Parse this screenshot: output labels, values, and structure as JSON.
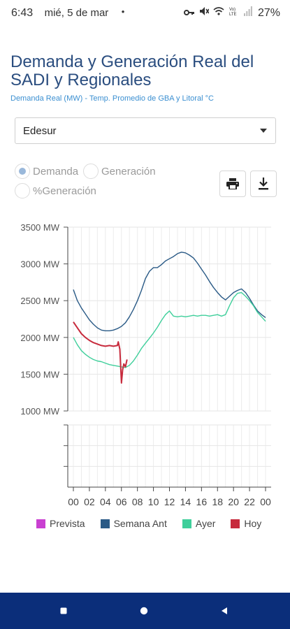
{
  "status_bar": {
    "time": "6:43",
    "date": "mié, 5 de mar",
    "dot": "•",
    "battery": "27%",
    "icons": [
      "key-icon",
      "mute-icon",
      "wifi-calling-icon",
      "volte-icon",
      "signal-icon"
    ]
  },
  "header": {
    "title": "Demanda y Generación Real del SADI y Regionales",
    "subtitle": "Demanda Real (MW) - Temp. Promedio de GBA y Litoral °C"
  },
  "region_select": {
    "value": "Edesur"
  },
  "mode": {
    "options": [
      {
        "label": "Demanda",
        "selected": true
      },
      {
        "label": "Generación",
        "selected": false
      },
      {
        "label": "%Generación",
        "selected": false
      }
    ]
  },
  "toolbar": {
    "print_icon": "print-icon",
    "download_icon": "download-icon"
  },
  "chart_data": {
    "type": "line",
    "y_axis": {
      "ticks": [
        "3500 MW",
        "3000 MW",
        "2500 MW",
        "2000 MW",
        "1500 MW",
        "1000 MW"
      ],
      "ylim": [
        1000,
        3500
      ]
    },
    "x_axis": {
      "ticks": [
        "00",
        "02",
        "04",
        "06",
        "08",
        "10",
        "12",
        "14",
        "16",
        "18",
        "20",
        "22",
        "00"
      ],
      "xlim": [
        0,
        24
      ]
    },
    "grid": true,
    "legend_position": "bottom",
    "series": [
      {
        "name": "Prevista",
        "color": "#c940d1",
        "points": []
      },
      {
        "name": "Semana Ant",
        "color": "#2a5a86",
        "points": [
          [
            0,
            2650
          ],
          [
            0.5,
            2500
          ],
          [
            1,
            2400
          ],
          [
            1.5,
            2320
          ],
          [
            2,
            2240
          ],
          [
            2.5,
            2180
          ],
          [
            3,
            2130
          ],
          [
            3.5,
            2100
          ],
          [
            4,
            2090
          ],
          [
            4.5,
            2090
          ],
          [
            5,
            2100
          ],
          [
            5.5,
            2120
          ],
          [
            6,
            2150
          ],
          [
            6.5,
            2200
          ],
          [
            7,
            2280
          ],
          [
            7.5,
            2380
          ],
          [
            8,
            2500
          ],
          [
            8.5,
            2640
          ],
          [
            9,
            2800
          ],
          [
            9.5,
            2900
          ],
          [
            10,
            2950
          ],
          [
            10.5,
            2950
          ],
          [
            11,
            2990
          ],
          [
            11.5,
            3040
          ],
          [
            12,
            3070
          ],
          [
            12.5,
            3100
          ],
          [
            13,
            3140
          ],
          [
            13.5,
            3160
          ],
          [
            14,
            3150
          ],
          [
            14.5,
            3120
          ],
          [
            15,
            3080
          ],
          [
            15.5,
            3010
          ],
          [
            16,
            2930
          ],
          [
            16.5,
            2850
          ],
          [
            17,
            2760
          ],
          [
            17.5,
            2680
          ],
          [
            18,
            2610
          ],
          [
            18.5,
            2550
          ],
          [
            19,
            2510
          ],
          [
            19.5,
            2560
          ],
          [
            20,
            2610
          ],
          [
            20.5,
            2640
          ],
          [
            21,
            2660
          ],
          [
            21.5,
            2610
          ],
          [
            22,
            2530
          ],
          [
            22.5,
            2440
          ],
          [
            23,
            2360
          ],
          [
            23.5,
            2310
          ],
          [
            24,
            2270
          ]
        ]
      },
      {
        "name": "Ayer",
        "color": "#3fcf9b",
        "points": [
          [
            0,
            2000
          ],
          [
            0.5,
            1900
          ],
          [
            1,
            1820
          ],
          [
            1.5,
            1770
          ],
          [
            2,
            1730
          ],
          [
            2.5,
            1700
          ],
          [
            3,
            1680
          ],
          [
            3.5,
            1670
          ],
          [
            4,
            1650
          ],
          [
            4.5,
            1630
          ],
          [
            5,
            1620
          ],
          [
            5.5,
            1610
          ],
          [
            6,
            1600
          ],
          [
            6.5,
            1590
          ],
          [
            7,
            1620
          ],
          [
            7.5,
            1680
          ],
          [
            8,
            1760
          ],
          [
            8.5,
            1850
          ],
          [
            9,
            1920
          ],
          [
            9.5,
            1990
          ],
          [
            10,
            2060
          ],
          [
            10.5,
            2140
          ],
          [
            11,
            2230
          ],
          [
            11.5,
            2310
          ],
          [
            12,
            2360
          ],
          [
            12.5,
            2290
          ],
          [
            13,
            2280
          ],
          [
            13.5,
            2290
          ],
          [
            14,
            2280
          ],
          [
            14.5,
            2290
          ],
          [
            15,
            2300
          ],
          [
            15.5,
            2290
          ],
          [
            16,
            2300
          ],
          [
            16.5,
            2300
          ],
          [
            17,
            2290
          ],
          [
            17.5,
            2300
          ],
          [
            18,
            2310
          ],
          [
            18.5,
            2290
          ],
          [
            19,
            2310
          ],
          [
            19.5,
            2430
          ],
          [
            20,
            2540
          ],
          [
            20.5,
            2600
          ],
          [
            21,
            2610
          ],
          [
            21.5,
            2560
          ],
          [
            22,
            2500
          ],
          [
            22.5,
            2430
          ],
          [
            23,
            2340
          ],
          [
            23.5,
            2280
          ],
          [
            24,
            2220
          ]
        ]
      },
      {
        "name": "Hoy",
        "color": "#c72a3c",
        "points": [
          [
            0,
            2210
          ],
          [
            0.5,
            2130
          ],
          [
            1,
            2050
          ],
          [
            1.5,
            2000
          ],
          [
            2,
            1960
          ],
          [
            2.5,
            1930
          ],
          [
            3,
            1910
          ],
          [
            3.5,
            1890
          ],
          [
            4,
            1880
          ],
          [
            4.5,
            1890
          ],
          [
            5,
            1880
          ],
          [
            5.5,
            1890
          ],
          [
            5.6,
            1940
          ],
          [
            5.8,
            1840
          ],
          [
            6,
            1380
          ],
          [
            6.15,
            1560
          ],
          [
            6.3,
            1640
          ],
          [
            6.5,
            1600
          ],
          [
            6.7,
            1700
          ]
        ]
      }
    ]
  }
}
